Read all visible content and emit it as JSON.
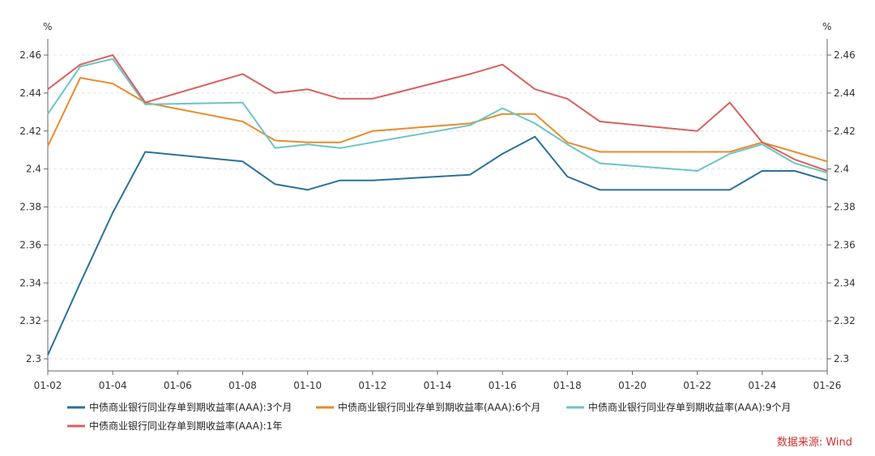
{
  "chart_data": {
    "type": "line",
    "unit_left": "%",
    "unit_right": "%",
    "ylim": [
      2.3,
      2.46
    ],
    "y_ticks": [
      2.3,
      2.32,
      2.34,
      2.36,
      2.38,
      2.4,
      2.42,
      2.44,
      2.46
    ],
    "y_tick_labels": [
      "2.3",
      "2.32",
      "2.34",
      "2.36",
      "2.38",
      "2.4",
      "2.42",
      "2.44",
      "2.46"
    ],
    "x": [
      "01-02",
      "01-03",
      "01-04",
      "01-05",
      "01-06",
      "01-07",
      "01-08",
      "01-09",
      "01-10",
      "01-11",
      "01-12",
      "01-13",
      "01-14",
      "01-15",
      "01-16",
      "01-17",
      "01-18",
      "01-19",
      "01-20",
      "01-21",
      "01-22",
      "01-23",
      "01-24",
      "01-25",
      "01-26"
    ],
    "x_tick_labels": [
      "01-02",
      "01-04",
      "01-06",
      "01-08",
      "01-10",
      "01-12",
      "01-14",
      "01-16",
      "01-18",
      "01-20",
      "01-22",
      "01-24",
      "01-26"
    ],
    "series": [
      {
        "name": "中债商业银行同业存单到期收益率(AAA):3个月",
        "color": "#2a7199",
        "values": [
          2.302,
          2.34,
          2.377,
          2.409,
          null,
          null,
          2.404,
          2.392,
          2.389,
          2.394,
          2.394,
          null,
          null,
          2.397,
          2.408,
          2.417,
          2.396,
          2.389,
          null,
          null,
          2.389,
          2.389,
          2.399,
          2.399,
          2.394
        ]
      },
      {
        "name": "中债商业银行同业存单到期收益率(AAA):6个月",
        "color": "#e98b2a",
        "values": [
          2.412,
          2.448,
          2.445,
          2.435,
          null,
          null,
          2.425,
          2.415,
          2.414,
          2.414,
          2.42,
          null,
          null,
          2.424,
          2.429,
          2.429,
          2.414,
          2.409,
          null,
          null,
          2.409,
          2.409,
          2.414,
          2.409,
          2.404
        ]
      },
      {
        "name": "中债商业银行同业存单到期收益率(AAA):9个月",
        "color": "#6cc4c4",
        "values": [
          2.429,
          2.454,
          2.458,
          2.434,
          null,
          null,
          2.435,
          2.411,
          2.413,
          2.411,
          null,
          null,
          null,
          2.423,
          2.432,
          2.424,
          2.413,
          2.403,
          null,
          null,
          2.399,
          2.408,
          2.413,
          2.403,
          2.398
        ]
      },
      {
        "name": "中债商业银行同业存单到期收益率(AAA):1年",
        "color": "#d9605f",
        "values": [
          2.442,
          2.455,
          2.46,
          2.435,
          null,
          null,
          2.45,
          2.44,
          2.442,
          2.437,
          2.437,
          null,
          null,
          2.45,
          2.455,
          2.442,
          2.437,
          2.425,
          null,
          null,
          2.42,
          2.435,
          2.414,
          2.405,
          2.399
        ]
      }
    ],
    "source": "数据来源: Wind"
  }
}
